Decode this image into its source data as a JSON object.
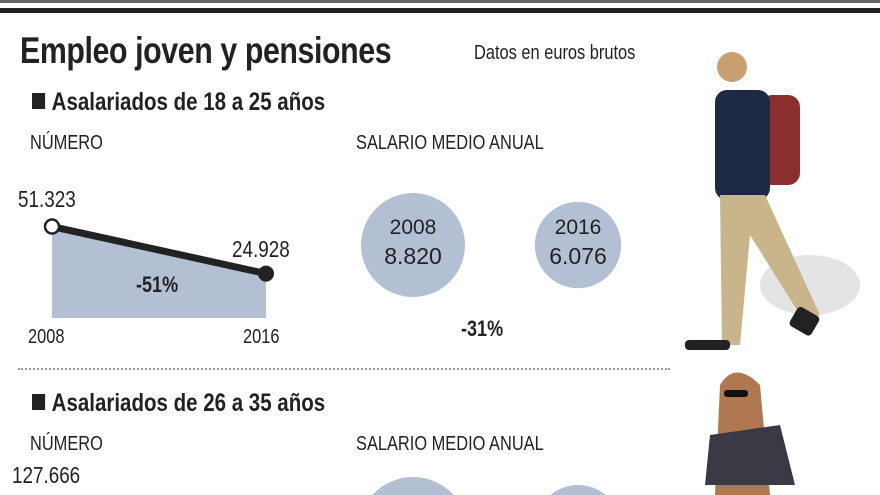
{
  "title": "Empleo joven y pensiones",
  "subtitle": "Datos en euros brutos",
  "colors": {
    "fill": "#b3bfd3",
    "text": "#222222"
  },
  "chart_data": [
    {
      "type": "area",
      "section": "Asalariados de 18 a 25 años",
      "label": "NÚMERO",
      "x": [
        "2008",
        "2016"
      ],
      "value_labels": [
        "51.323",
        "24.928"
      ],
      "y": [
        51323,
        24928
      ],
      "change": "-51%"
    },
    {
      "type": "bubble",
      "label": "SALARIO MEDIO ANUAL",
      "categories": [
        "2008",
        "2016"
      ],
      "values": [
        8820,
        6076
      ],
      "value_labels": [
        "8.820",
        "6.076"
      ],
      "change": "-31%"
    },
    {
      "type": "area",
      "section": "Asalariados de 26 a 35 años",
      "label": "NÚMERO",
      "value_labels": [
        "127.666"
      ]
    },
    {
      "type": "bubble",
      "label": "SALARIO MEDIO ANUAL"
    }
  ]
}
